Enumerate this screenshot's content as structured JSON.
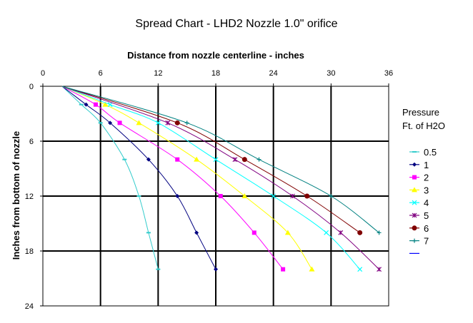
{
  "chart_data": {
    "type": "line",
    "title": "Spread Chart - LHD2 Nozzle 1.0\" orifice",
    "xlabel": "Distance from nozzle centerline - inches",
    "ylabel": "Inches from bottom of nozzle",
    "x_axis_position": "top",
    "xlim": [
      0,
      36
    ],
    "ylim": [
      0,
      24
    ],
    "y_inverted": true,
    "x_ticks": [
      "0",
      "6",
      "12",
      "18",
      "24",
      "30",
      "36"
    ],
    "y_ticks": [
      "0",
      "6",
      "12",
      "18",
      "24"
    ],
    "grid": true,
    "legend": {
      "title_line1": "Pressure",
      "title_line2": "Ft. of H2O",
      "position": "right"
    },
    "series": [
      {
        "name": "0.5",
        "color": "#33CCCC",
        "marker": "dash",
        "x": [
          2,
          4,
          6,
          8.5,
          10,
          11,
          12
        ],
        "y": [
          0,
          2,
          4,
          8,
          12,
          16,
          20
        ]
      },
      {
        "name": "1",
        "color": "#000080",
        "marker": "diamond",
        "x": [
          2,
          4.5,
          7,
          11,
          14,
          16,
          18
        ],
        "y": [
          0,
          2,
          4,
          8,
          12,
          16,
          20
        ]
      },
      {
        "name": "2",
        "color": "#FF00FF",
        "marker": "square",
        "x": [
          2,
          5.5,
          8,
          14,
          18.5,
          22,
          25
        ],
        "y": [
          0,
          2,
          4,
          8,
          12,
          16,
          20
        ]
      },
      {
        "name": "3",
        "color": "#FFFF00",
        "marker": "triangle",
        "x": [
          2,
          6.5,
          10,
          16,
          21,
          25.5,
          28
        ],
        "y": [
          0,
          2,
          4,
          8,
          12,
          16,
          20
        ]
      },
      {
        "name": "4",
        "color": "#00FFFF",
        "marker": "x",
        "x": [
          2,
          7,
          12,
          18,
          24,
          29.5,
          33
        ],
        "y": [
          0,
          2,
          4,
          8,
          12,
          16,
          20
        ]
      },
      {
        "name": "5",
        "color": "#800080",
        "marker": "star",
        "x": [
          2,
          13,
          20,
          26,
          31,
          35
        ],
        "y": [
          0,
          4,
          8,
          12,
          16,
          20
        ]
      },
      {
        "name": "6",
        "color": "#800000",
        "marker": "circle",
        "x": [
          2,
          14,
          21,
          27.5,
          33
        ],
        "y": [
          0,
          4,
          8,
          12,
          16
        ]
      },
      {
        "name": "7",
        "color": "#008080",
        "marker": "plus",
        "x": [
          2,
          15,
          22.5,
          30,
          35
        ],
        "y": [
          0,
          4,
          8,
          12,
          16
        ]
      },
      {
        "name": "",
        "color": "#0000FF",
        "marker": "none",
        "x": [],
        "y": []
      }
    ]
  }
}
